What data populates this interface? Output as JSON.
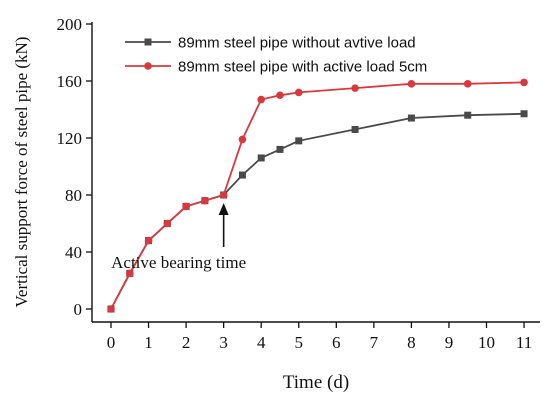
{
  "chart_data": {
    "type": "line",
    "title": "",
    "xlabel": "Time (d)",
    "ylabel": "Vertical support force of steel pipe (kN)",
    "xlim": [
      -0.5,
      11.5
    ],
    "ylim": [
      -10,
      200
    ],
    "x_ticks": [
      0,
      1,
      2,
      3,
      4,
      5,
      6,
      7,
      8,
      9,
      10,
      11
    ],
    "y_ticks": [
      0,
      40,
      80,
      120,
      160,
      200
    ],
    "grid": false,
    "legend_position": "top-right",
    "series": [
      {
        "name": "89mm steel pipe without avtive load",
        "color": "#4a4a4a",
        "marker": "square",
        "x": [
          0,
          0.5,
          1,
          1.5,
          2,
          2.5,
          3,
          3.5,
          4,
          4.5,
          5,
          6.5,
          8,
          9.5,
          11
        ],
        "values": [
          0,
          25,
          48,
          60,
          72,
          76,
          80,
          94,
          106,
          112,
          118,
          126,
          134,
          136,
          137
        ]
      },
      {
        "name": "89mm steel pipe with active load 5cm",
        "color": "#d9393e",
        "marker": "circle",
        "x": [
          0,
          0.5,
          1,
          1.5,
          2,
          2.5,
          3,
          3.5,
          4,
          4.5,
          5,
          6.5,
          8,
          9.5,
          11
        ],
        "values": [
          0,
          25,
          48,
          60,
          72,
          76,
          80,
          119,
          147,
          150,
          152,
          155,
          158,
          158,
          159
        ]
      }
    ],
    "annotations": [
      {
        "text": "Active bearing time",
        "arrow_to": {
          "x": 3,
          "y": 80
        }
      }
    ]
  }
}
